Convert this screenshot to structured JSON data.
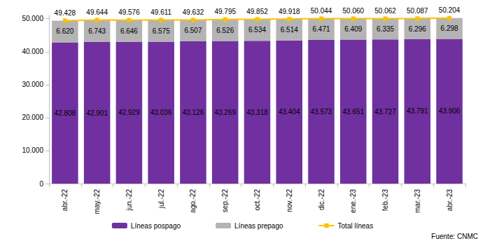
{
  "chart_data": {
    "type": "bar",
    "stacked": true,
    "data_labels": true,
    "grid": false,
    "legend": "bottom",
    "annotation": "Fuente: CNMC",
    "categories": [
      "abr.-22",
      "may.-22",
      "jun.-22",
      "jul.-22",
      "ago.-22",
      "sep.-22",
      "oct.-22",
      "nov.-22",
      "dic.-22",
      "ene.-23",
      "feb.-23",
      "mar.-23",
      "abr.-23"
    ],
    "ylim": [
      0,
      51000
    ],
    "yticks": [
      0,
      {
        "value": 10000,
        "label": "10.000"
      },
      {
        "value": 20000,
        "label": "20.000"
      },
      {
        "value": 30000,
        "label": "30.000"
      },
      {
        "value": 40000,
        "label": "40.000"
      },
      {
        "value": 50000,
        "label": "50.000"
      }
    ],
    "series": [
      {
        "name": "Líneas pospago",
        "type": "bar",
        "color": "#7030a0",
        "values": [
          42808,
          42901,
          42929,
          43036,
          43126,
          43269,
          43318,
          43404,
          43573,
          43651,
          43727,
          43791,
          43906
        ],
        "value_labels": [
          "42.808",
          "42.901",
          "42.929",
          "43.036",
          "43.126",
          "43.269",
          "43.318",
          "43.404",
          "43.573",
          "43.651",
          "43.727",
          "43.791",
          "43.906"
        ]
      },
      {
        "name": "Líneas prepago",
        "type": "bar",
        "color": "#b4b4b4",
        "values": [
          6620,
          6743,
          6646,
          6575,
          6507,
          6526,
          6534,
          6514,
          6471,
          6409,
          6335,
          6296,
          6298
        ],
        "value_labels": [
          "6.620",
          "6.743",
          "6.646",
          "6.575",
          "6.507",
          "6.526",
          "6.534",
          "6.514",
          "6.471",
          "6.409",
          "6.335",
          "6.296",
          "6.298"
        ]
      },
      {
        "name": "Total líneas",
        "type": "line",
        "color": "#ffc000",
        "marker": "square",
        "values": [
          49428,
          49644,
          49576,
          49611,
          49632,
          49795,
          49852,
          49918,
          50044,
          50060,
          50062,
          50087,
          50204
        ],
        "value_labels": [
          "49.428",
          "49.644",
          "49.576",
          "49.611",
          "49.632",
          "49.795",
          "49.852",
          "49.918",
          "50.044",
          "50.060",
          "50.062",
          "50.087",
          "50.204"
        ]
      }
    ]
  }
}
